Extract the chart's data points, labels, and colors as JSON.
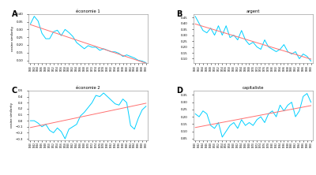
{
  "title_A": "économie 1",
  "title_B": "argent",
  "title_C": "économie 2",
  "title_D": "capitaliste",
  "ylabel": "cosine similarity",
  "x_labels": [
    "1840",
    "1842",
    "1844",
    "1846",
    "1848",
    "1850",
    "1852",
    "1854",
    "1856",
    "1858",
    "1860",
    "1862",
    "1864",
    "1866",
    "1868",
    "1870",
    "1872",
    "1874",
    "1876",
    "1878",
    "1880",
    "1882",
    "1884",
    "1886",
    "1888",
    "1890",
    "1892",
    "1894",
    "1896",
    "1898",
    "1900"
  ],
  "panel_labels": [
    "A",
    "B",
    "C",
    "D"
  ],
  "line_color": "#00D0FF",
  "trend_color": "#FF7070",
  "background": "#FFFFFF",
  "data_A": [
    0.335,
    0.385,
    0.355,
    0.275,
    0.24,
    0.24,
    0.285,
    0.295,
    0.26,
    0.3,
    0.28,
    0.255,
    0.215,
    0.195,
    0.175,
    0.195,
    0.185,
    0.185,
    0.165,
    0.175,
    0.165,
    0.155,
    0.155,
    0.145,
    0.125,
    0.135,
    0.125,
    0.115,
    0.1,
    0.095,
    0.085
  ],
  "data_B": [
    0.46,
    0.4,
    0.34,
    0.32,
    0.36,
    0.3,
    0.38,
    0.3,
    0.38,
    0.28,
    0.3,
    0.26,
    0.34,
    0.26,
    0.22,
    0.24,
    0.2,
    0.18,
    0.26,
    0.2,
    0.18,
    0.16,
    0.18,
    0.22,
    0.16,
    0.14,
    0.16,
    0.1,
    0.14,
    0.12,
    0.08
  ],
  "data_C": [
    0.0,
    0.0,
    -0.04,
    -0.1,
    -0.06,
    -0.16,
    -0.2,
    -0.12,
    -0.18,
    -0.3,
    -0.14,
    -0.1,
    -0.06,
    0.08,
    0.14,
    0.22,
    0.3,
    0.42,
    0.4,
    0.46,
    0.4,
    0.34,
    0.28,
    0.26,
    0.36,
    0.3,
    -0.08,
    -0.14,
    0.04,
    0.18,
    0.24
  ],
  "data_D": [
    0.22,
    0.2,
    0.24,
    0.22,
    0.14,
    0.12,
    0.16,
    0.06,
    0.1,
    0.14,
    0.16,
    0.12,
    0.18,
    0.14,
    0.16,
    0.14,
    0.18,
    0.2,
    0.16,
    0.22,
    0.24,
    0.2,
    0.28,
    0.24,
    0.28,
    0.3,
    0.2,
    0.24,
    0.34,
    0.36,
    0.3
  ],
  "ylim_A": [
    0.08,
    0.4
  ],
  "ylim_B": [
    0.06,
    0.48
  ],
  "ylim_C": [
    -0.32,
    0.5
  ],
  "ylim_D": [
    0.04,
    0.38
  ],
  "yticks_A": [
    0.1,
    0.15,
    0.2,
    0.25,
    0.3,
    0.35,
    0.4
  ],
  "yticks_B": [
    0.1,
    0.15,
    0.2,
    0.25,
    0.3,
    0.35,
    0.4,
    0.45
  ],
  "yticks_C": [
    -0.3,
    -0.2,
    -0.1,
    0.0,
    0.1,
    0.2,
    0.3,
    0.4,
    0.5
  ],
  "yticks_D": [
    0.05,
    0.1,
    0.15,
    0.2,
    0.25,
    0.3,
    0.35
  ]
}
